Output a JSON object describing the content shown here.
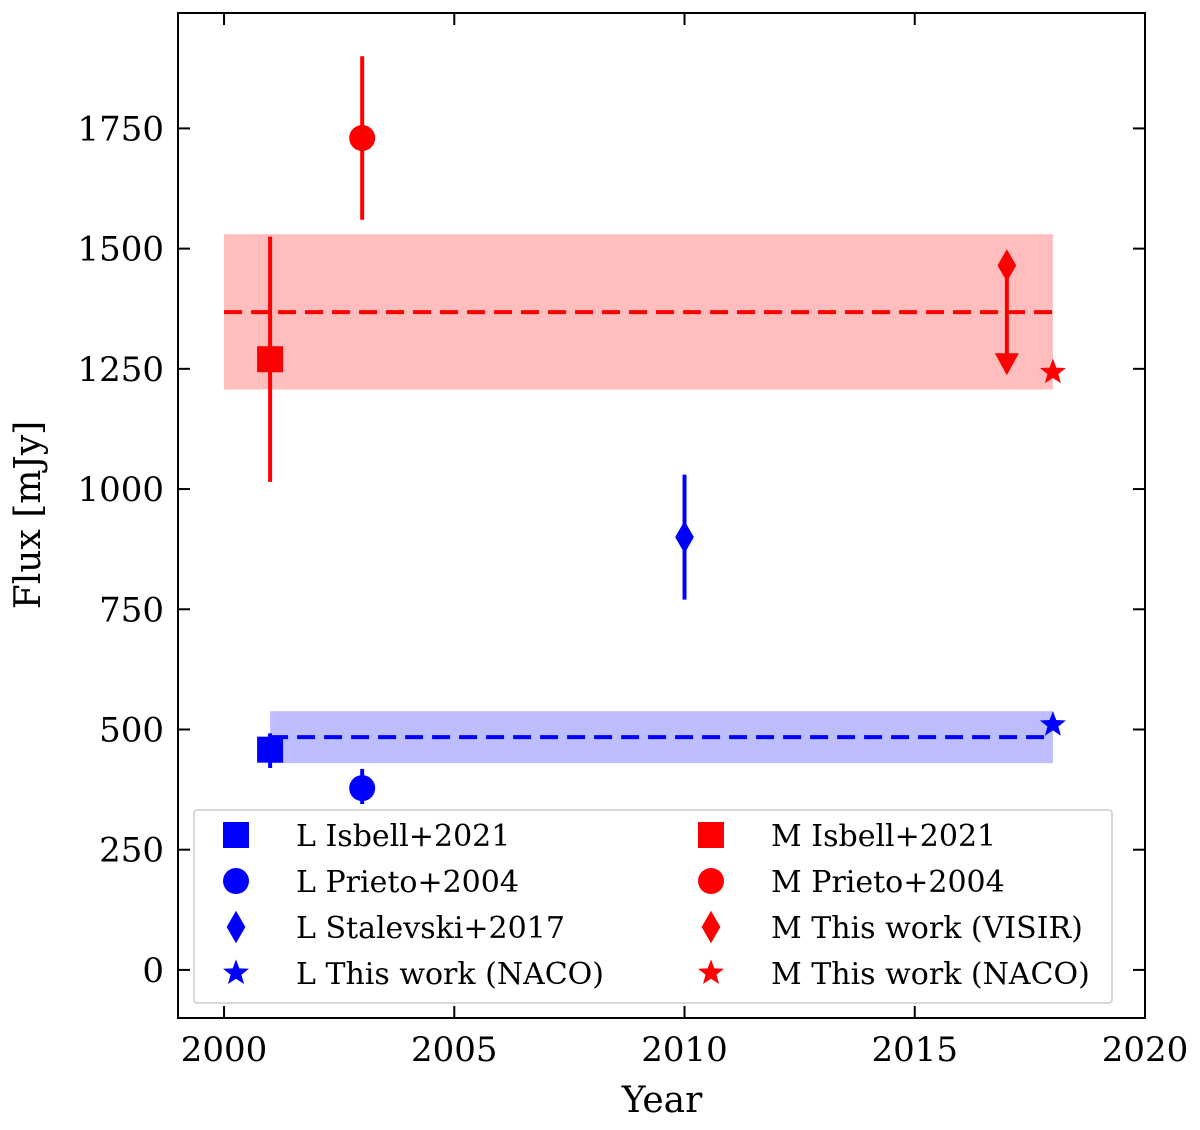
{
  "chart_data": {
    "type": "scatter",
    "title": "",
    "xlabel": "Year",
    "ylabel": "Flux [mJy]",
    "xlim": [
      1999,
      2020
    ],
    "ylim": [
      -100,
      1990
    ],
    "xticks": [
      2000,
      2005,
      2010,
      2015,
      2020
    ],
    "yticks": [
      0,
      250,
      500,
      750,
      1000,
      1250,
      1500,
      1750
    ],
    "grid": false,
    "legend_position": "lower-center",
    "bands": [
      {
        "band": "M",
        "color": "#ff0000",
        "fill_color": "#ffbdbd",
        "mean": 1368,
        "range": [
          1207,
          1530
        ],
        "x": [
          2000,
          2018
        ]
      },
      {
        "band": "L",
        "color": "#0000ff",
        "fill_color": "#bdbdff",
        "mean": 484,
        "range": [
          430,
          538
        ],
        "x": [
          2001,
          2018
        ]
      }
    ],
    "series": [
      {
        "name": "L Isbell+2021",
        "band": "L",
        "marker": "square",
        "color": "#0000ff",
        "points": [
          {
            "x": 2001,
            "y": 458,
            "err": [
              420,
              492
            ]
          }
        ]
      },
      {
        "name": "L Prieto+2004",
        "band": "L",
        "marker": "circle",
        "color": "#0000ff",
        "points": [
          {
            "x": 2003,
            "y": 378,
            "err": [
              345,
              418
            ]
          }
        ]
      },
      {
        "name": "L Stalevski+2017",
        "band": "L",
        "marker": "diamond",
        "color": "#0000ff",
        "points": [
          {
            "x": 2010,
            "y": 900,
            "err": [
              770,
              1030
            ]
          }
        ]
      },
      {
        "name": "L This work (NACO)",
        "band": "L",
        "marker": "star",
        "color": "#0000ff",
        "points": [
          {
            "x": 2018,
            "y": 510
          }
        ]
      },
      {
        "name": "M Isbell+2021",
        "band": "M",
        "marker": "square",
        "color": "#ff0000",
        "points": [
          {
            "x": 2001,
            "y": 1270,
            "err": [
              1015,
              1525
            ]
          }
        ]
      },
      {
        "name": "M Prieto+2004",
        "band": "M",
        "marker": "circle",
        "color": "#ff0000",
        "points": [
          {
            "x": 2003,
            "y": 1730,
            "err": [
              1560,
              1900
            ]
          }
        ]
      },
      {
        "name": "M This work (VISIR)",
        "band": "M",
        "marker": "diamond",
        "color": "#ff0000",
        "points": [
          {
            "x": 2017,
            "y": 1465,
            "upper_limit_to": 1245
          }
        ]
      },
      {
        "name": "M This work (NACO)",
        "band": "M",
        "marker": "star",
        "color": "#ff0000",
        "points": [
          {
            "x": 2018,
            "y": 1243
          }
        ]
      }
    ],
    "legend_order": [
      "L Isbell+2021",
      "M Isbell+2021",
      "L Prieto+2004",
      "M Prieto+2004",
      "L Stalevski+2017",
      "M This work (VISIR)",
      "L This work (NACO)",
      "M This work (NACO)"
    ]
  }
}
